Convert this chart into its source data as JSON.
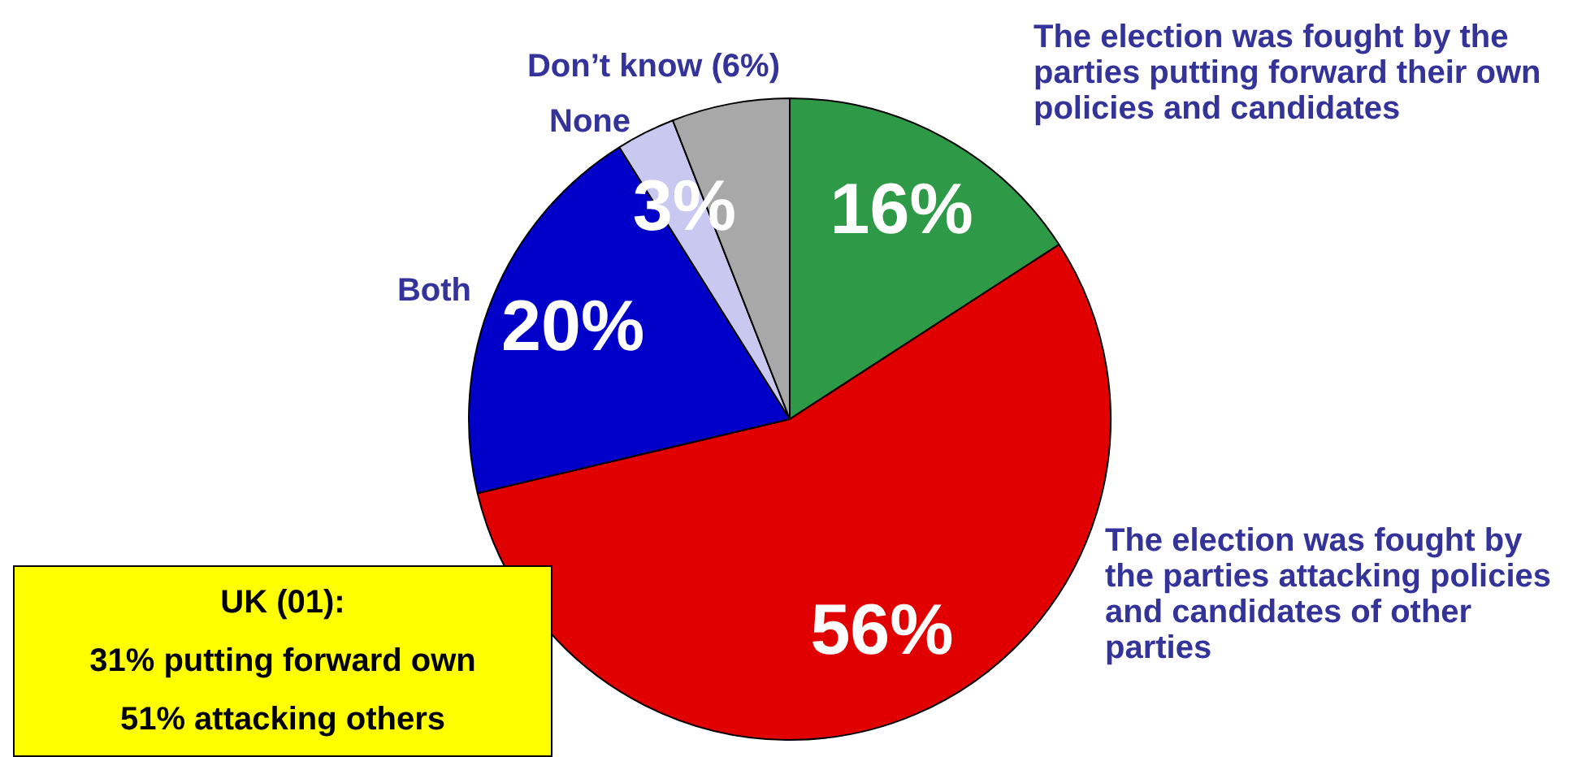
{
  "chart_data": {
    "type": "pie",
    "categories": [
      "The election was fought by the parties putting forward their own policies and candidates",
      "The election was fought by the parties attacking policies and candidates of other parties",
      "Both",
      "None",
      "Don’t know (6%)"
    ],
    "values": [
      16,
      56,
      20,
      3,
      6
    ],
    "colors": [
      "#2e9a48",
      "#e00000",
      "#0000c8",
      "#c8c8f0",
      "#a8a8a8"
    ],
    "value_labels": [
      "16%",
      "56%",
      "20%",
      "3%",
      null
    ],
    "legend": false,
    "annotations": [
      "UK (01):",
      "31% putting forward own",
      "51% attacking others"
    ]
  }
}
